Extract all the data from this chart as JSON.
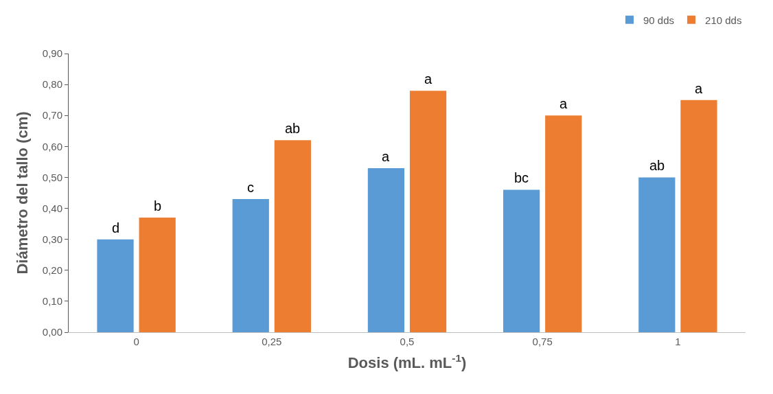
{
  "chart_data": {
    "type": "bar",
    "xlabel": "Dosis (mL. mL$^{-1}$)",
    "ylabel": "Diámetro del tallo (cm)",
    "categories": [
      "0",
      "0,25",
      "0,5",
      "0,75",
      "1"
    ],
    "series": [
      {
        "name": "90 dds",
        "color": "#5b9bd5",
        "values": [
          0.3,
          0.43,
          0.53,
          0.46,
          0.5
        ]
      },
      {
        "name": "210 dds",
        "color": "#ed7d31",
        "values": [
          0.37,
          0.62,
          0.78,
          0.7,
          0.75
        ]
      }
    ],
    "ylim": [
      0,
      0.9
    ],
    "yticks": [
      {
        "value": 0,
        "label": "0,00"
      },
      {
        "value": 0.1,
        "label": "0,10"
      },
      {
        "value": 0.2,
        "label": "0,20"
      },
      {
        "value": 0.3,
        "label": "0,30"
      },
      {
        "value": 0.4,
        "label": "0,40"
      },
      {
        "value": 0.5,
        "label": "0,50"
      },
      {
        "value": 0.6,
        "label": "0,60"
      },
      {
        "value": 0.7,
        "label": "0,70"
      },
      {
        "value": 0.8,
        "label": "0,80"
      },
      {
        "value": 0.9,
        "label": "0,90"
      }
    ],
    "annotations": [
      {
        "text": "d",
        "x": "0",
        "y": 0.3
      },
      {
        "text": "b",
        "x": "0",
        "y": 0.37
      },
      {
        "text": "c",
        "x": "0,25",
        "y": 0.43
      },
      {
        "text": "ab",
        "x": "0,25",
        "y": 0.62
      },
      {
        "text": "a",
        "x": "0,5",
        "y": 0.53
      },
      {
        "text": "a",
        "x": "0,5",
        "y": 0.78
      },
      {
        "text": "bc",
        "x": "0,75",
        "y": 0.46
      },
      {
        "text": "a",
        "x": "0,75",
        "y": 0.7
      },
      {
        "text": "ab",
        "x": "1",
        "y": 0.5
      },
      {
        "text": "a",
        "x": "1",
        "y": 0.75
      }
    ],
    "legend": "top right"
  }
}
